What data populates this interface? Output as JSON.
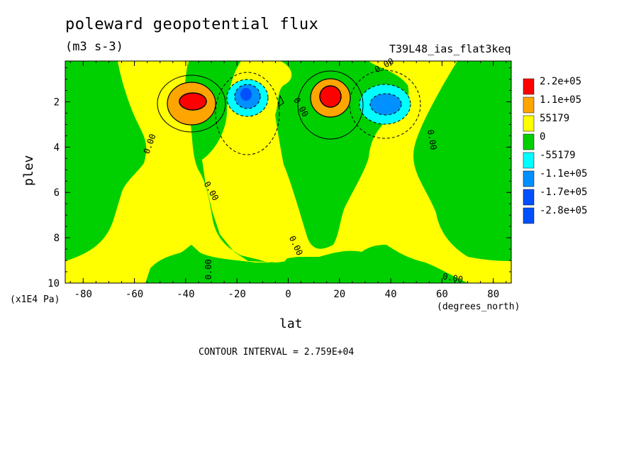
{
  "chart_data": {
    "type": "heatmap",
    "title": "poleward geopotential flux",
    "subtitle": "(m3 s-3)",
    "dataset_label": "T39L48_ias_flat3keq",
    "xlabel": "lat",
    "xunits": "(degrees_north)",
    "ylabel": "plev",
    "yunits": "(x1E4 Pa)",
    "xlim": [
      -87,
      87
    ],
    "ylim": [
      10,
      0.2
    ],
    "x_ticks": [
      -80,
      -60,
      -40,
      -20,
      0,
      20,
      40,
      60,
      80
    ],
    "x_tick_labels": [
      "-80",
      "-60",
      "-40",
      "-20",
      "0",
      "20",
      "40",
      "60",
      "80"
    ],
    "y_ticks": [
      2,
      4,
      6,
      8,
      10
    ],
    "y_tick_labels": [
      "2",
      "4",
      "6",
      "8",
      "10"
    ],
    "contour_interval_text": "CONTOUR INTERVAL = 2.759E+04",
    "contour_labels": [
      "0.00",
      "0.00",
      "0.00",
      "0.00",
      "0.00",
      "0.00",
      "0.00",
      "0.00"
    ],
    "legend": {
      "placement": "right",
      "levels": [
        {
          "label": "2.2e+05",
          "color": "#ff0000"
        },
        {
          "label": "1.1e+05",
          "color": "#ffa500"
        },
        {
          "label": "55179",
          "color": "#ffff00"
        },
        {
          "label": "0",
          "color": "#00d000"
        },
        {
          "label": "-55179",
          "color": "#00ffff"
        },
        {
          "label": "-1.1e+05",
          "color": "#0090ff"
        },
        {
          "label": "-1.7e+05",
          "color": "#0050ff"
        },
        {
          "label": "-2.8e+05",
          "color": "#0050ff"
        }
      ]
    },
    "features": [
      {
        "name": "SH positive maximum",
        "lat": -39,
        "plev": 1.9,
        "value": 220000
      },
      {
        "name": "SH negative minimum",
        "lat": -16,
        "plev": 1.7,
        "value": -170000
      },
      {
        "name": "NH positive maximum",
        "lat": 17,
        "plev": 1.7,
        "value": 220000
      },
      {
        "name": "NH negative minimum",
        "lat": 38,
        "plev": 2.0,
        "value": -170000
      }
    ]
  },
  "colors": {
    "positive_low": "#ffff00",
    "negative_low": "#00d000",
    "orange": "#ffa500",
    "red": "#ff0000",
    "cyan": "#00ffff",
    "blue": "#0090ff"
  }
}
